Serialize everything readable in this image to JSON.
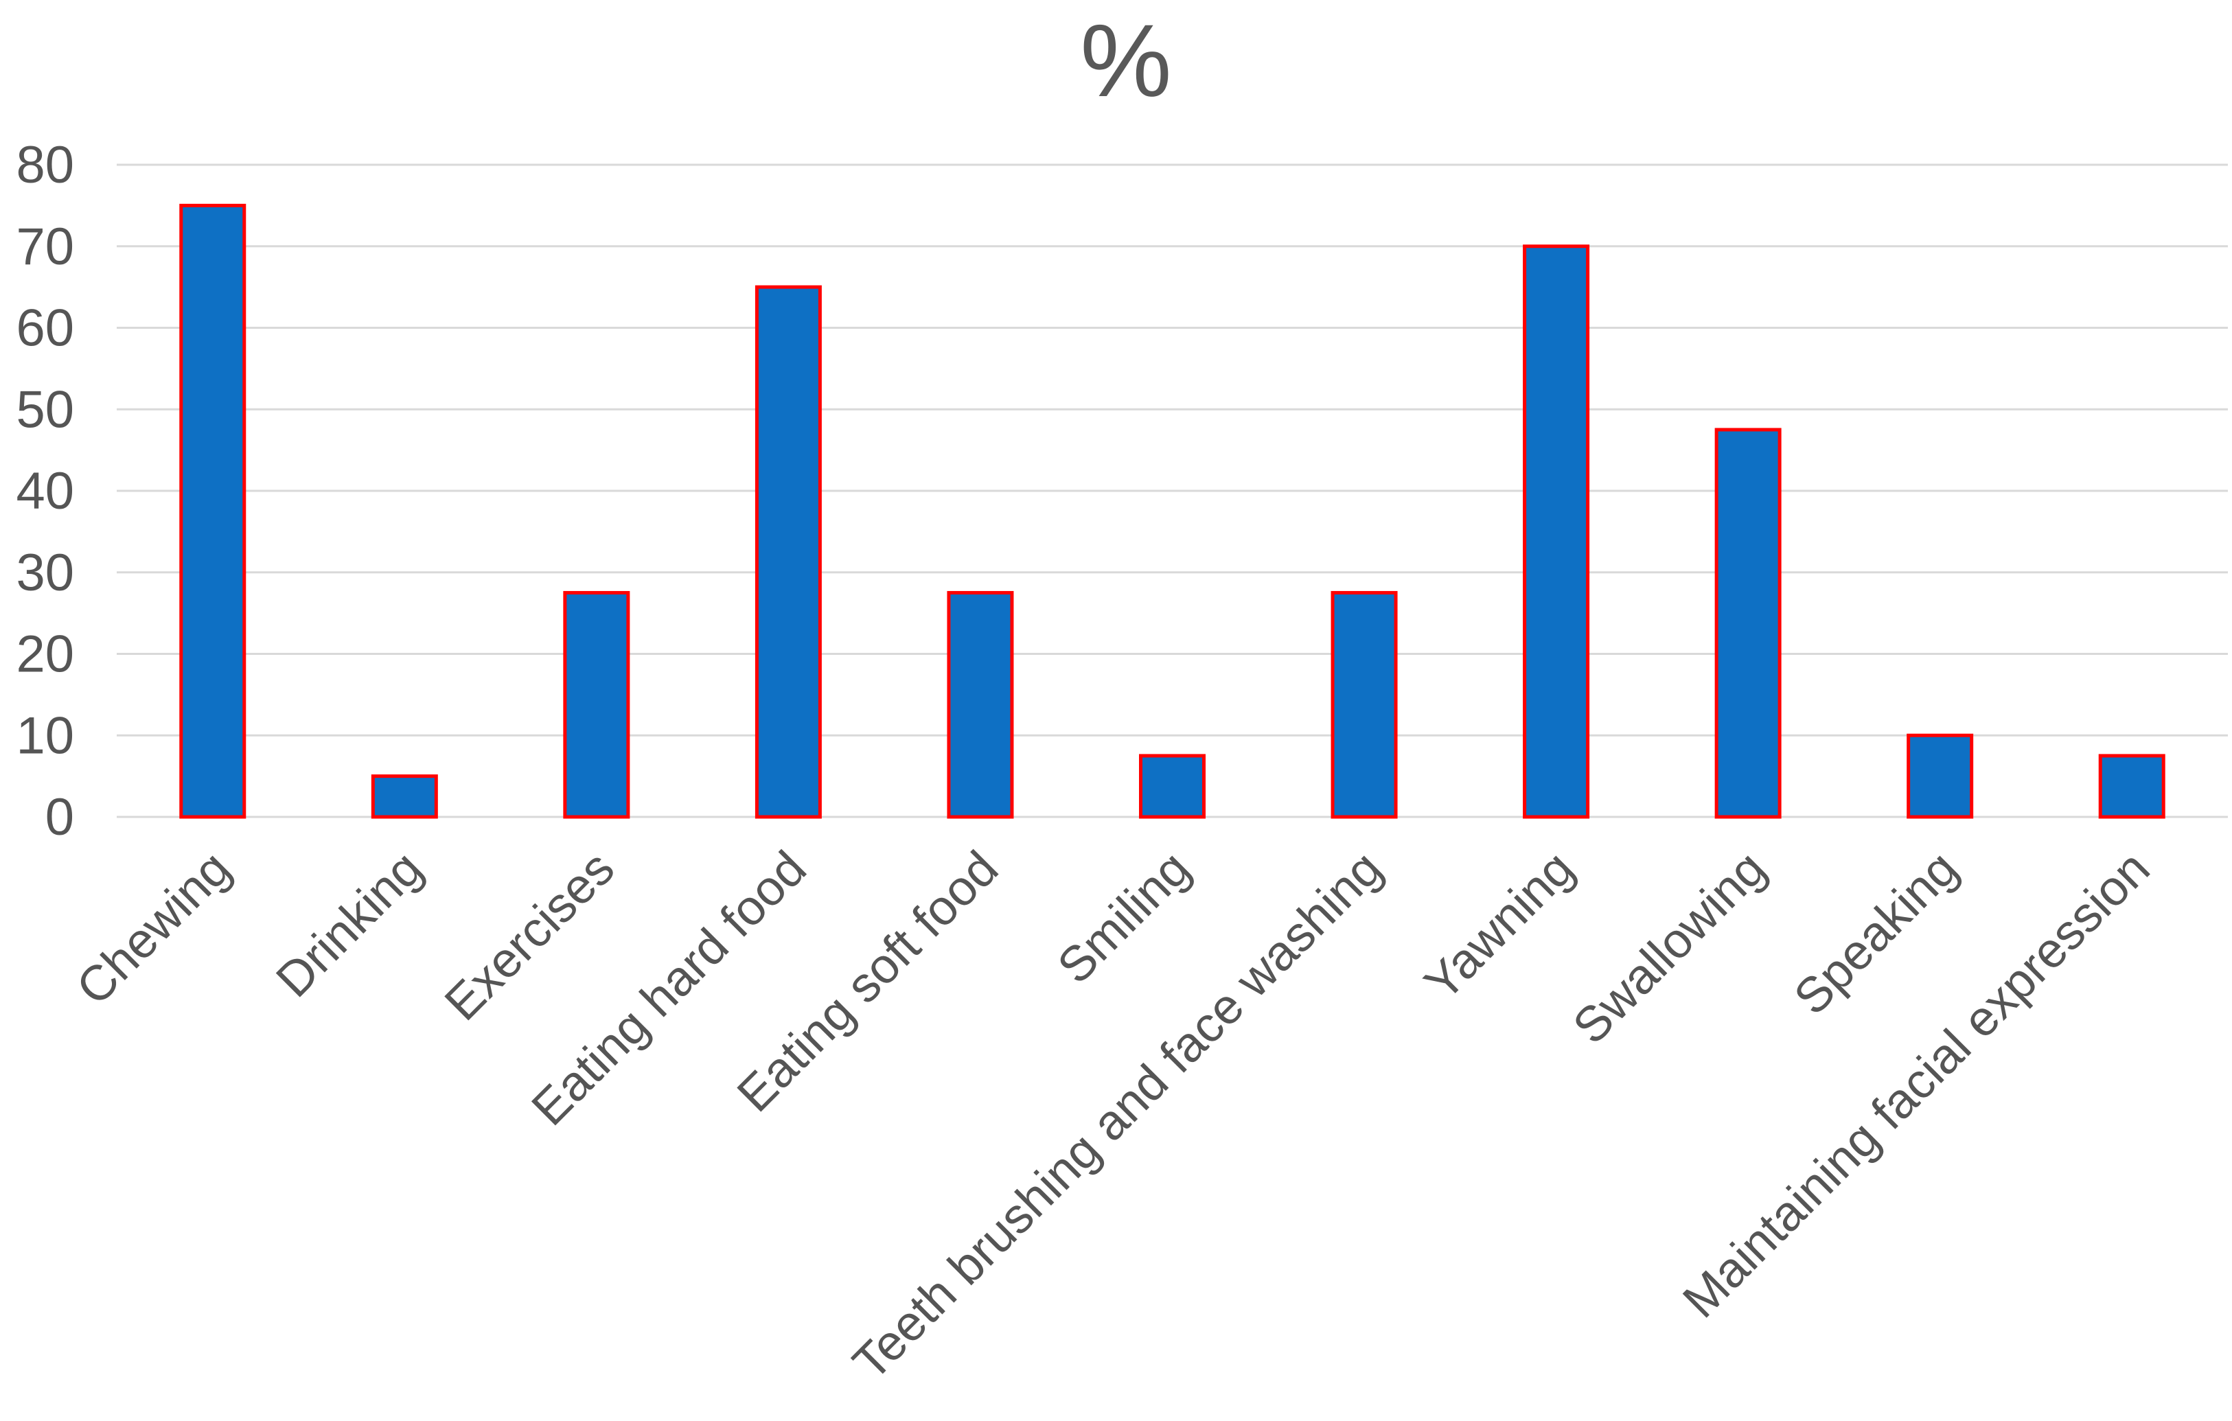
{
  "chart_data": {
    "type": "bar",
    "title": "%",
    "categories": [
      "Chewing",
      "Drinking",
      "Exercises",
      "Eating hard food",
      "Eating soft food",
      "Smiling",
      "Teeth brushing and face washing",
      "Yawning",
      "Swallowing",
      "Speaking",
      "Maintaining facial expression"
    ],
    "values": [
      75,
      5,
      27.5,
      65,
      27.5,
      7.5,
      27.5,
      70,
      47.5,
      10,
      7.5
    ],
    "xlabel": "",
    "ylabel": "",
    "ylim": [
      0,
      80
    ],
    "yticks": [
      0,
      10,
      20,
      30,
      40,
      50,
      60,
      70,
      80
    ],
    "grid": "horizontal",
    "legend": "none",
    "x_label_rotation_deg": 45,
    "colors": {
      "bar_fill": "#0E70C4",
      "bar_border": "#FF0000",
      "gridline": "#D9D9D9",
      "tick_text": "#555555",
      "title_text": "#595959",
      "background": "#FFFFFF"
    }
  }
}
